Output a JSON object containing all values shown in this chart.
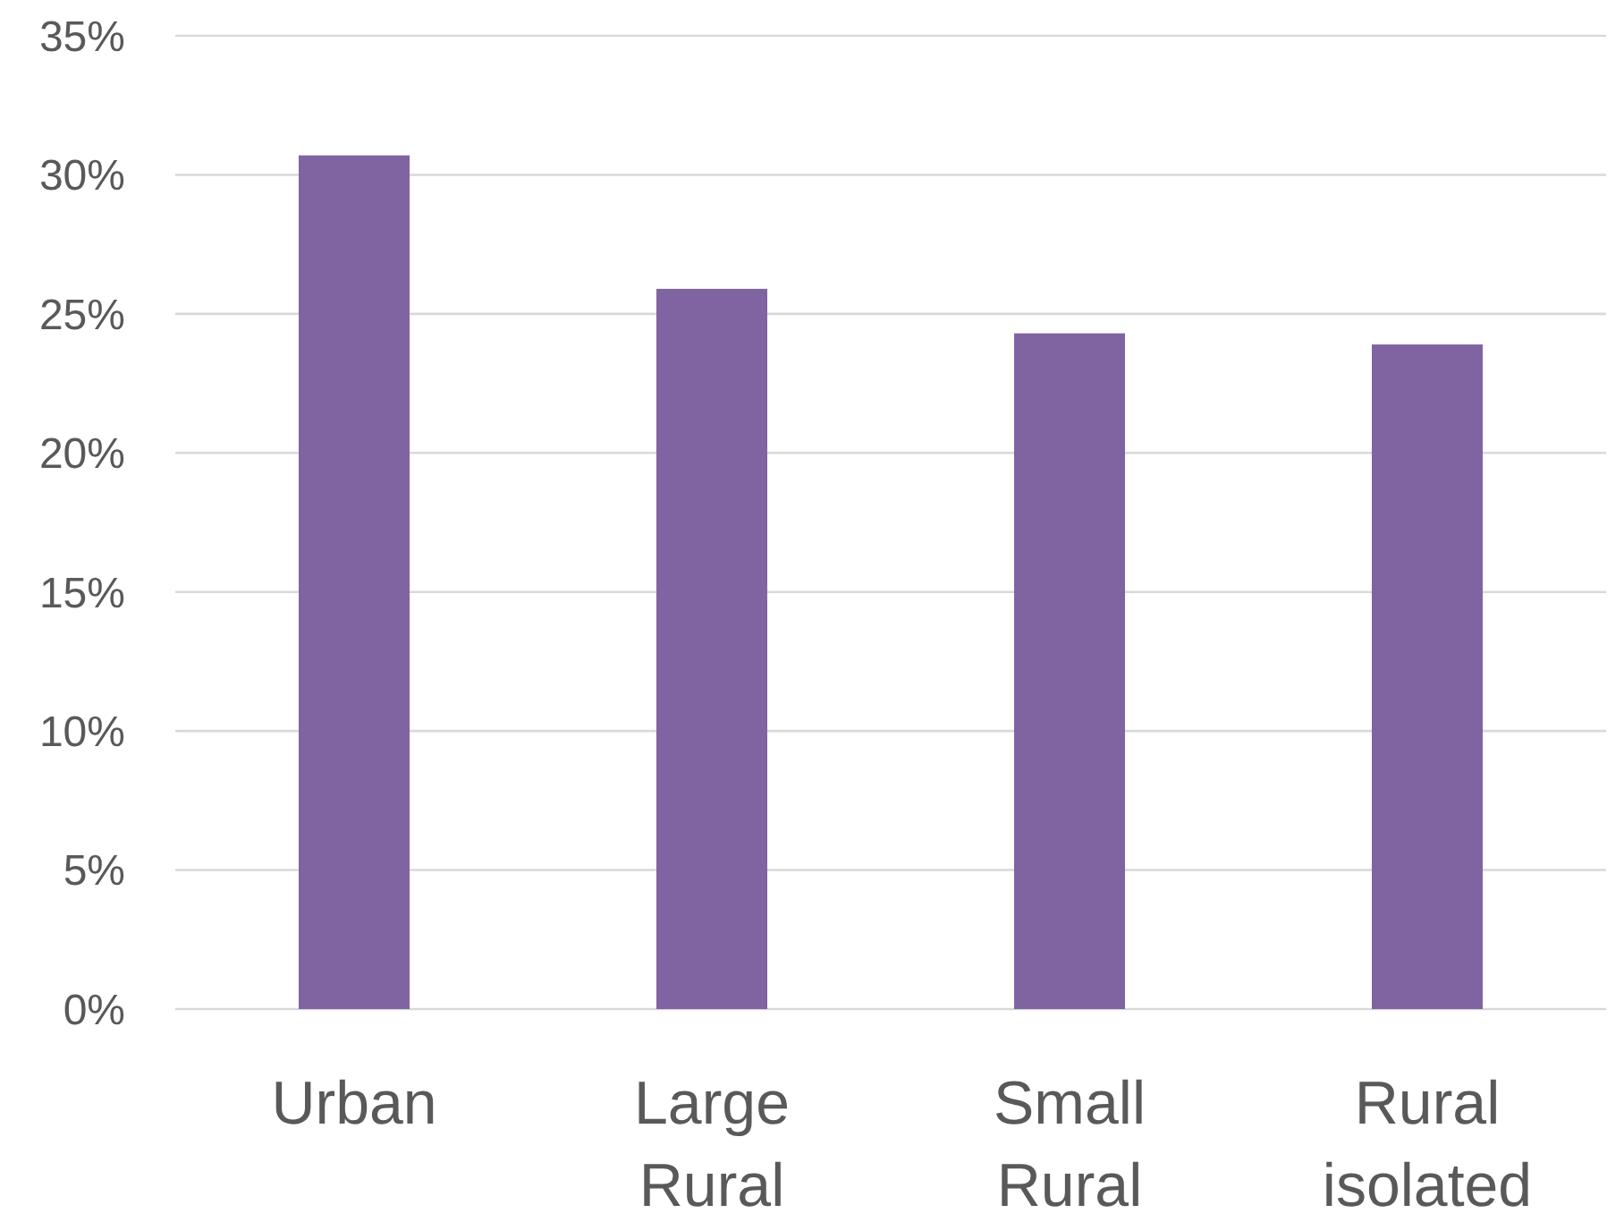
{
  "chart_data": {
    "type": "bar",
    "categories": [
      "Urban",
      "Large Rural",
      "Small Rural",
      "Rural isolated"
    ],
    "values": [
      30.7,
      25.9,
      24.3,
      23.9
    ],
    "color": "#8064a2",
    "ylim": [
      0,
      35
    ],
    "yticks": [
      {
        "value": 0,
        "label": "0%"
      },
      {
        "value": 5,
        "label": "5%"
      },
      {
        "value": 10,
        "label": "10%"
      },
      {
        "value": 15,
        "label": "15%"
      },
      {
        "value": 20,
        "label": "20%"
      },
      {
        "value": 25,
        "label": "25%"
      },
      {
        "value": 30,
        "label": "30%"
      },
      {
        "value": 35,
        "label": "35%"
      }
    ],
    "grid": "y"
  }
}
